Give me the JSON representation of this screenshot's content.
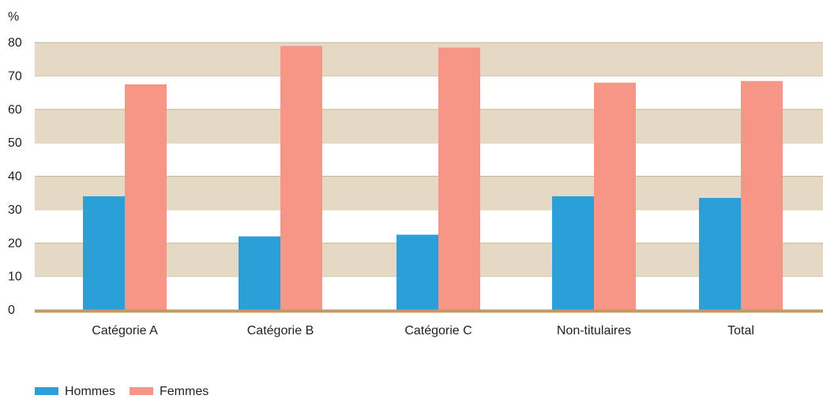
{
  "chart_data": {
    "type": "bar",
    "ylabel": "%",
    "ylim": [
      0,
      80
    ],
    "y_ticks": [
      "0",
      "10",
      "20",
      "30",
      "40",
      "50",
      "60",
      "70",
      "80"
    ],
    "categories": [
      "Catégorie A",
      "Catégorie B",
      "Catégorie C",
      "Non-titulaires",
      "Total"
    ],
    "series": [
      {
        "name": "Hommes",
        "color": "#2a9fd8",
        "values": [
          34,
          22,
          22.5,
          34,
          33.5
        ]
      },
      {
        "name": "Femmes",
        "color": "#f69686",
        "values": [
          67.5,
          79,
          78.5,
          68,
          68.5
        ]
      }
    ],
    "grid": "horizontal bands",
    "band_color": "#e5d9c5",
    "axis_color": "#c29a61",
    "legend": "bottom-left"
  }
}
